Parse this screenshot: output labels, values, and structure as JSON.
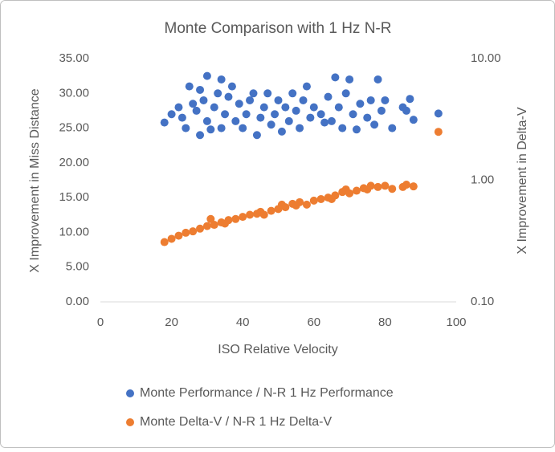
{
  "chart_data": {
    "type": "scatter",
    "title": "Monte Comparison with 1 Hz N-R",
    "x_label": "ISO Relative Velocity",
    "y_label": "X Improvement in Miss Distance",
    "y2_label": "X Improvement in Delta-V",
    "xlim": [
      0,
      100
    ],
    "xticks": [
      0,
      20,
      40,
      60,
      80,
      100
    ],
    "ylim": [
      0,
      35
    ],
    "yticks": [
      {
        "value": 0,
        "label": "0.00"
      },
      {
        "value": 5,
        "label": "5.00"
      },
      {
        "value": 10,
        "label": "10.00"
      },
      {
        "value": 15,
        "label": "15.00"
      },
      {
        "value": 20,
        "label": "20.00"
      },
      {
        "value": 25,
        "label": "25.00"
      },
      {
        "value": 30,
        "label": "30.00"
      },
      {
        "value": 35,
        "label": "35.00"
      }
    ],
    "y2lim": [
      0.1,
      10
    ],
    "y2_log": true,
    "y2ticks": [
      {
        "value": 0.1,
        "label": "0.10"
      },
      {
        "value": 1,
        "label": "1.00"
      },
      {
        "value": 10,
        "label": "10.00"
      }
    ],
    "legend": "bottom",
    "series": [
      {
        "name": "Monte Performance / N-R 1 Hz Performance",
        "color": "#4472c4",
        "x": [
          18,
          20,
          22,
          23,
          24,
          25,
          26,
          27,
          28,
          28,
          29,
          30,
          30,
          31,
          32,
          33,
          34,
          34,
          35,
          36,
          37,
          38,
          39,
          40,
          41,
          42,
          43,
          44,
          45,
          46,
          47,
          48,
          49,
          50,
          51,
          52,
          53,
          54,
          55,
          56,
          57,
          58,
          59,
          60,
          62,
          63,
          64,
          65,
          66,
          67,
          68,
          69,
          70,
          71,
          72,
          73,
          75,
          76,
          77,
          78,
          79,
          80,
          82,
          85,
          86,
          87,
          88,
          95
        ],
        "values": [
          25.8,
          27,
          28,
          26.5,
          25,
          31,
          28.5,
          27.5,
          30.5,
          24,
          29,
          32.5,
          26,
          24.8,
          28,
          30,
          32,
          25,
          27,
          29.5,
          31,
          26,
          28.5,
          25,
          27,
          29,
          30,
          24,
          26.5,
          28,
          30,
          25.5,
          27,
          29,
          24.5,
          28,
          26,
          30,
          27.5,
          25,
          29,
          31,
          26.5,
          28,
          27,
          25.8,
          29.5,
          26,
          32.3,
          28,
          25,
          30,
          32,
          27,
          24.8,
          28.5,
          26.5,
          29,
          25.5,
          32,
          27.5,
          29,
          25,
          28,
          27.5,
          29.2,
          26.2,
          27.1
        ]
      },
      {
        "name": "Monte Delta-V / N-R 1 Hz Delta-V",
        "color": "#ed7d31",
        "axis": "y2",
        "x": [
          18,
          20,
          22,
          24,
          26,
          28,
          30,
          31,
          32,
          34,
          35,
          36,
          38,
          40,
          42,
          44,
          45,
          46,
          48,
          50,
          51,
          52,
          54,
          55,
          56,
          58,
          60,
          62,
          64,
          65,
          66,
          68,
          69,
          70,
          72,
          74,
          75,
          76,
          78,
          80,
          82,
          85,
          86,
          88,
          95
        ],
        "values": [
          0.31,
          0.33,
          0.35,
          0.37,
          0.38,
          0.4,
          0.42,
          0.48,
          0.43,
          0.45,
          0.44,
          0.47,
          0.48,
          0.5,
          0.52,
          0.53,
          0.55,
          0.52,
          0.56,
          0.58,
          0.63,
          0.6,
          0.64,
          0.62,
          0.66,
          0.63,
          0.68,
          0.7,
          0.72,
          0.7,
          0.75,
          0.8,
          0.84,
          0.78,
          0.82,
          0.86,
          0.84,
          0.9,
          0.88,
          0.9,
          0.85,
          0.88,
          0.92,
          0.89,
          2.5
        ]
      }
    ]
  }
}
